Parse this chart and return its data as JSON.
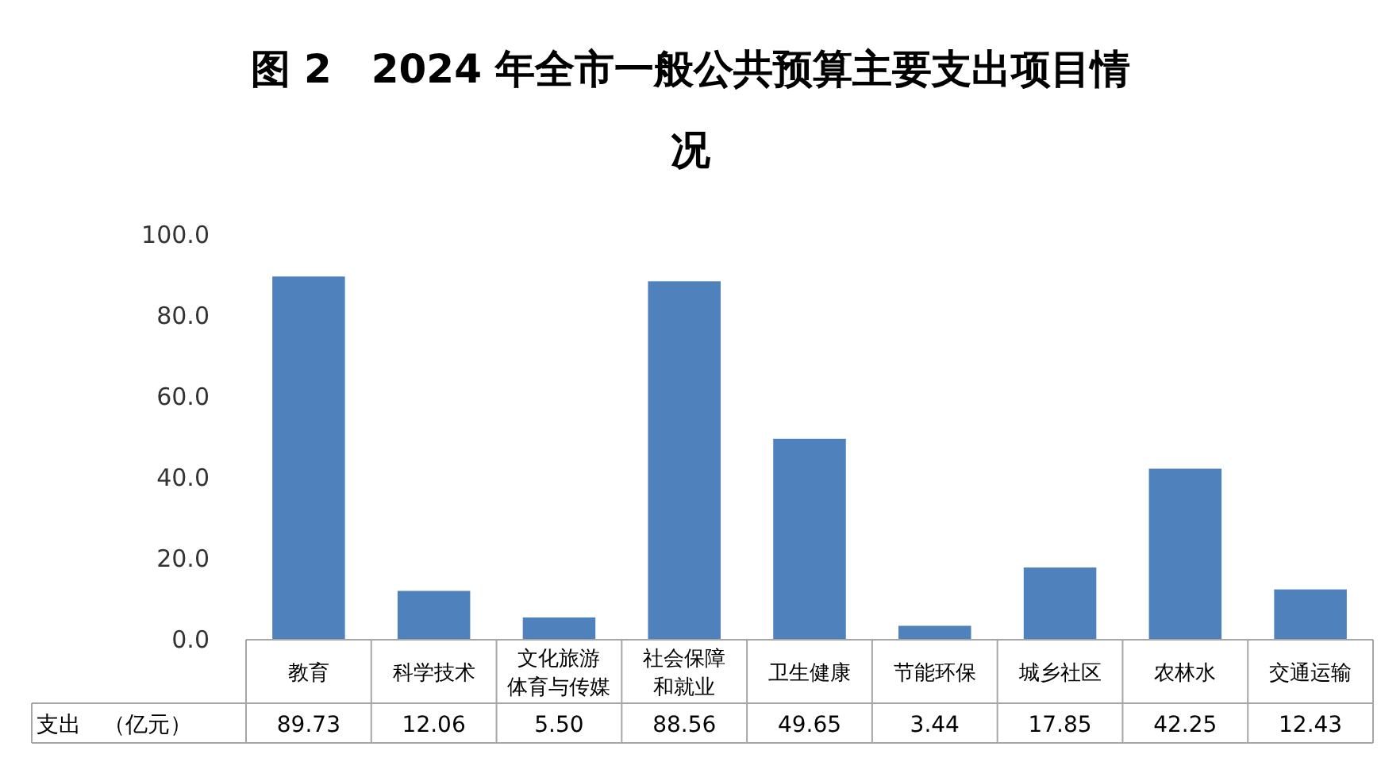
{
  "chart_data": {
    "type": "bar",
    "title": "图 2　2024 年全市一般公共预算主要支出项目情况",
    "categories": [
      "教育",
      "科学技术",
      "文化旅游体育与传媒",
      "社会保障和就业",
      "卫生健康",
      "节能环保",
      "城乡社区",
      "农林水",
      "交通运输"
    ],
    "series": [
      {
        "name": "支出　（亿元）",
        "color": "#4f81bd",
        "values": [
          89.73,
          12.06,
          5.5,
          88.56,
          49.65,
          3.44,
          17.85,
          42.25,
          12.43
        ],
        "value_labels": [
          "89.73",
          "12.06",
          "5.50",
          "88.56",
          "49.65",
          "3.44",
          "17.85",
          "42.25",
          "12.43"
        ]
      }
    ],
    "ylim": [
      0,
      100
    ],
    "yticks": [
      {
        "value": 0,
        "label": "0.0"
      },
      {
        "value": 20,
        "label": "20.0"
      },
      {
        "value": 40,
        "label": "40.0"
      },
      {
        "value": 60,
        "label": "60.0"
      },
      {
        "value": 80,
        "label": "80.0"
      },
      {
        "value": 100,
        "label": "100.0"
      }
    ],
    "grid": false
  }
}
